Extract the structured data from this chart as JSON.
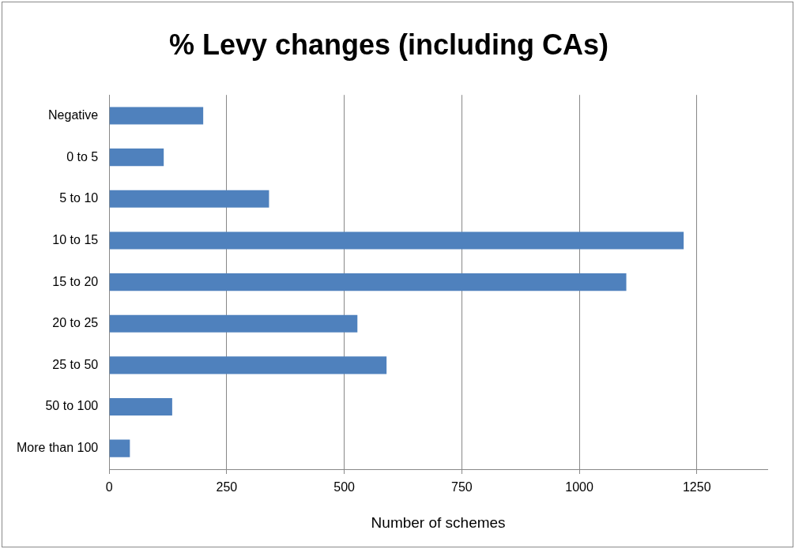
{
  "chart_data": {
    "type": "bar",
    "orientation": "horizontal",
    "title": "% Levy changes (including CAs)",
    "xlabel": "Number of schemes",
    "categories": [
      "Negative",
      "0 to 5",
      "5 to 10",
      "10 to 15",
      "15 to 20",
      "20 to 25",
      "25 to 50",
      "50 to 100",
      "More than 100"
    ],
    "values": [
      200,
      116,
      340,
      1222,
      1100,
      528,
      590,
      134,
      44
    ],
    "color": "#4f81bd",
    "xlim": [
      0,
      1400
    ],
    "xticks": [
      0,
      250,
      500,
      750,
      1000,
      1250
    ],
    "grid": "x",
    "legend": false
  }
}
